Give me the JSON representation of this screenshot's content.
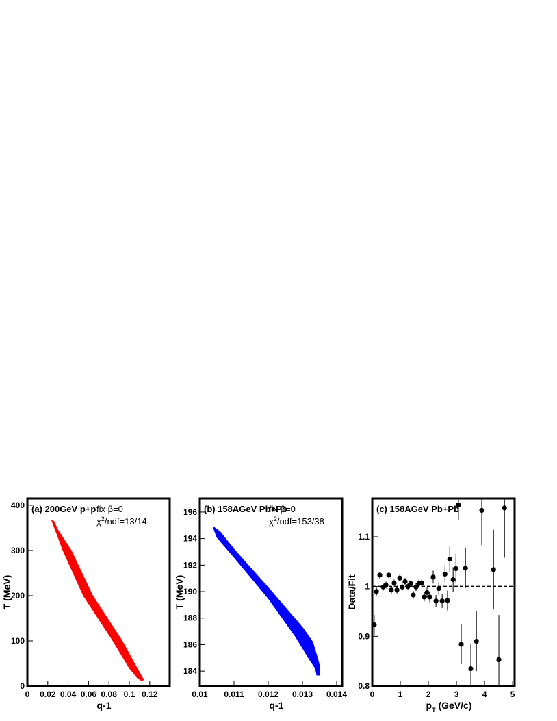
{
  "chart_data": [
    {
      "type": "area",
      "title": "(a) 200GeV p+p",
      "annotations": [
        [
          "fix β=0"
        ],
        [
          "χ",
          "2",
          "/ndf=13/14"
        ]
      ],
      "xlabel": [
        "q-1"
      ],
      "ylabel": "T (MeV)",
      "color": "#ff0000",
      "x": [
        0.024,
        0.035,
        0.055,
        0.084,
        0.1,
        0.108,
        0.112,
        0.114,
        0.112,
        0.105,
        0.093,
        0.064,
        0.043,
        0.03,
        0.026
      ],
      "y": [
        366,
        300,
        200,
        100,
        40,
        18,
        12,
        14,
        22,
        50,
        100,
        200,
        300,
        345,
        364
      ],
      "xlim": [
        0,
        0.1396
      ],
      "ylim": [
        0,
        415
      ],
      "xticks": [
        0,
        0.02,
        0.04,
        0.06,
        0.08,
        0.1,
        0.12
      ],
      "yticks": [
        0,
        100,
        200,
        300,
        400
      ]
    },
    {
      "type": "area",
      "title": "(b) 158AGeV Pb+Pb",
      "annotations": [
        [
          "fix β=0"
        ],
        [
          "χ",
          "2",
          "/ndf=153/38"
        ]
      ],
      "xlabel": [
        "q-1"
      ],
      "ylabel": "T (MeV)",
      "color": "#0000ff",
      "x": [
        0.01042,
        0.0106,
        0.011,
        0.012,
        0.013,
        0.0133,
        0.01345,
        0.0135,
        0.01349,
        0.01342,
        0.01338,
        0.0132,
        0.0128,
        0.012,
        0.011,
        0.0105,
        0.0104
      ],
      "y": [
        194.85,
        194.5,
        193.2,
        190.3,
        187.3,
        186.2,
        184.9,
        184.4,
        183.7,
        183.7,
        184.2,
        184.9,
        186.6,
        189.5,
        192.6,
        194.1,
        194.8
      ],
      "xlim": [
        0.01,
        0.01416
      ],
      "ylim": [
        182.87,
        197.03
      ],
      "xticks": [
        0.01,
        0.011,
        0.012,
        0.013,
        0.014
      ],
      "yticks": [
        184,
        186,
        188,
        190,
        192,
        194,
        196
      ]
    },
    {
      "type": "scatter",
      "title": "(c) 158AGeV Pb+Pb",
      "annotations": [],
      "xlabel": [
        "p",
        "T",
        " (GeV/c)"
      ],
      "ylabel": "Data/Fit",
      "color": "#000000",
      "x": [
        0.07,
        0.15,
        0.27,
        0.39,
        0.49,
        0.59,
        0.68,
        0.78,
        0.88,
        0.98,
        1.07,
        1.17,
        1.27,
        1.37,
        1.46,
        1.56,
        1.66,
        1.76,
        1.85,
        1.95,
        2.05,
        2.17,
        2.27,
        2.37,
        2.49,
        2.59,
        2.68,
        2.76,
        2.88,
        2.98,
        3.07,
        3.17,
        3.32,
        3.51,
        3.71,
        3.9,
        4.32,
        4.51,
        4.71
      ],
      "values": [
        0.923,
        0.99,
        1.023,
        0.999,
        1.003,
        1.023,
        0.993,
        1.007,
        0.993,
        1.017,
        0.999,
        1.01,
        1.0,
        1.006,
        0.983,
        0.999,
        1.006,
        1.007,
        0.979,
        0.988,
        0.979,
        1.019,
        0.971,
        0.996,
        0.971,
        1.025,
        0.972,
        1.055,
        1.014,
        1.036,
        1.164,
        0.884,
        1.037,
        0.835,
        0.89,
        1.153,
        1.034,
        0.853,
        1.158
      ],
      "errors": [
        0.02,
        0.008,
        0.007,
        0.007,
        0.007,
        0.006,
        0.007,
        0.007,
        0.007,
        0.007,
        0.007,
        0.007,
        0.007,
        0.007,
        0.008,
        0.008,
        0.008,
        0.009,
        0.009,
        0.01,
        0.011,
        0.013,
        0.012,
        0.013,
        0.014,
        0.016,
        0.02,
        0.025,
        0.025,
        0.03,
        0.03,
        0.04,
        0.04,
        0.05,
        0.06,
        0.07,
        0.08,
        0.09,
        0.1
      ],
      "reference_line": 1,
      "xlim": [
        0,
        5.07
      ],
      "ylim": [
        0.8,
        1.177
      ],
      "xticks": [
        0,
        1,
        2,
        3,
        4,
        5
      ],
      "yticks": [
        0.8,
        0.9,
        1,
        1.1
      ]
    }
  ]
}
